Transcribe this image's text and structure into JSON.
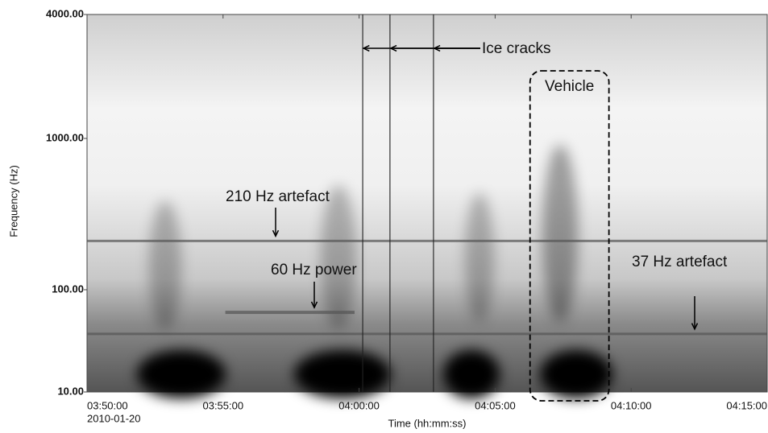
{
  "chart_data": {
    "type": "spectrogram",
    "xlabel": "Time (hh:mm:ss)",
    "ylabel": "Frequency (Hz)",
    "date": "2010-01-20",
    "yscale": "log",
    "ylim": [
      10,
      4000
    ],
    "yticks": [
      {
        "value": 10,
        "label": "10.00"
      },
      {
        "value": 100,
        "label": "100.00"
      },
      {
        "value": 1000,
        "label": "1000.00"
      },
      {
        "value": 4000,
        "label": "4000.00"
      }
    ],
    "xlim": [
      "03:50:00",
      "04:15:00"
    ],
    "xticks": [
      "03:50:00",
      "03:55:00",
      "04:00:00",
      "04:05:00",
      "04:10:00",
      "04:15:00"
    ],
    "tones": [
      {
        "name": "210 Hz artefact",
        "freq": 210,
        "start": "03:50:00",
        "end": "04:15:00"
      },
      {
        "name": "60 Hz power",
        "freq": 60,
        "start": "03:55:05",
        "end": "03:59:50"
      },
      {
        "name": "37 Hz artefact",
        "freq": 37,
        "start": "03:50:00",
        "end": "04:15:00"
      }
    ],
    "cracks": {
      "name": "Ice cracks",
      "times": [
        "04:00:08",
        "04:01:08",
        "04:02:44"
      ]
    },
    "vehicle": {
      "name": "Vehicle",
      "start": "04:06:17",
      "end": "04:09:11"
    }
  }
}
